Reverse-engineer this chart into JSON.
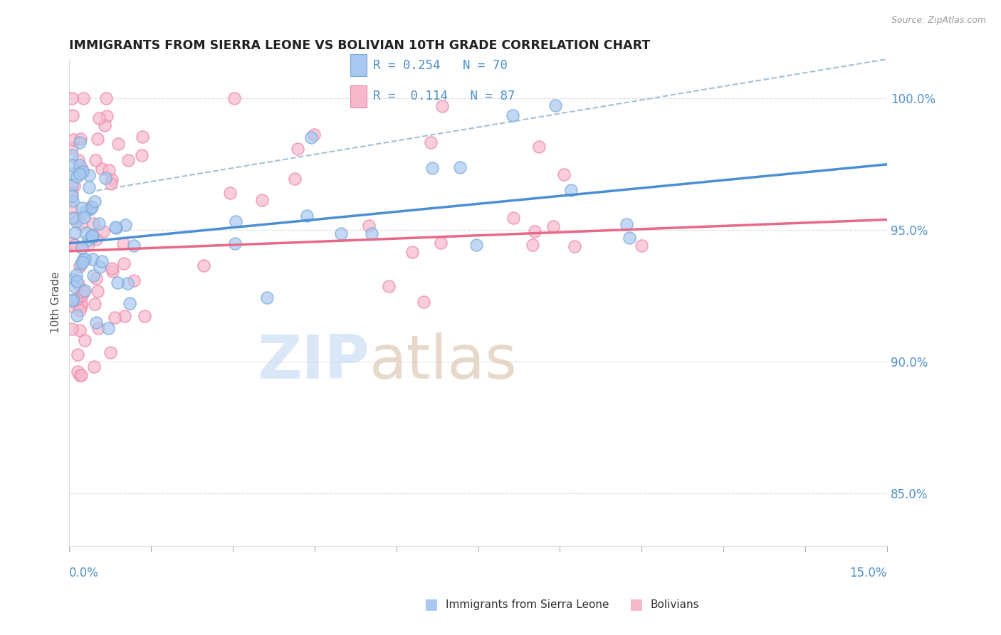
{
  "title": "IMMIGRANTS FROM SIERRA LEONE VS BOLIVIAN 10TH GRADE CORRELATION CHART",
  "source_text": "Source: ZipAtlas.com",
  "ylabel": "10th Grade",
  "xlim": [
    0.0,
    15.0
  ],
  "ylim": [
    83.0,
    101.5
  ],
  "yticks": [
    85.0,
    90.0,
    95.0,
    100.0
  ],
  "ytick_labels": [
    "85.0%",
    "90.0%",
    "95.0%",
    "100.0%"
  ],
  "blue_color": "#A8C8F0",
  "blue_edge": "#7AAAD8",
  "pink_color": "#F8B8CC",
  "pink_edge": "#E888A8",
  "trend_blue": "#4A8FD4",
  "trend_pink": "#E86888",
  "dash_color": "#A0C0D8",
  "series1_label": "Immigrants from Sierra Leone",
  "series2_label": "Bolivians",
  "legend_box_color": "#A8C8F0",
  "legend_pink_color": "#F8B8CC",
  "grid_color": "#DDDDDD",
  "tick_color": "#AAAAAA",
  "ytick_color": "#5090C8",
  "source_color": "#999999",
  "title_color": "#222222",
  "ylabel_color": "#555555",
  "watermark_zip_color": "#C0D8F0",
  "watermark_atlas_color": "#D8C0A8"
}
